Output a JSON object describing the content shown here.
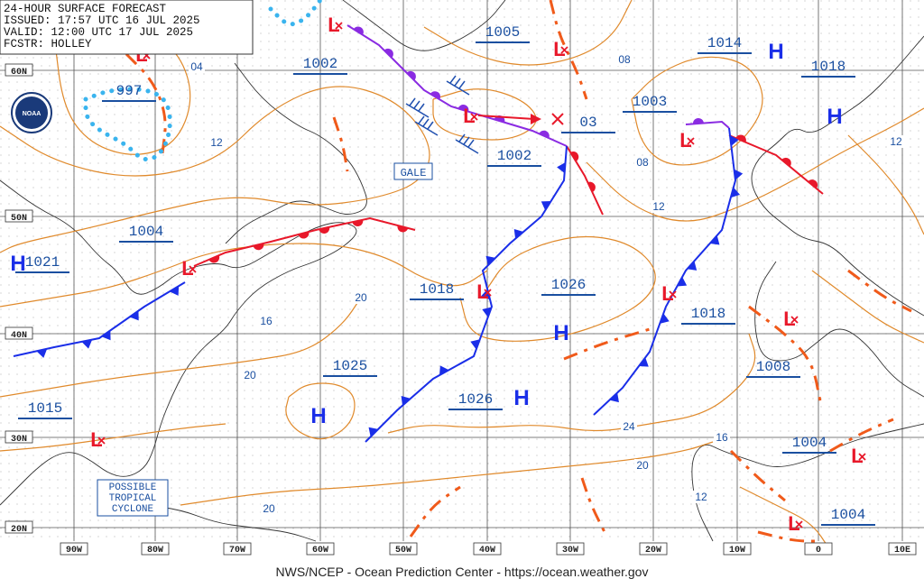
{
  "header": {
    "lines": [
      "24-HOUR SURFACE FORECAST",
      "ISSUED: 17:57 UTC 16 JUL 2025",
      "VALID:  12:00 UTC 17 JUL 2025",
      "FCSTR:  HOLLEY"
    ]
  },
  "logo": "NOAA",
  "pressure_labels": [
    "997",
    "1002",
    "1005",
    "1014",
    "1018",
    "1003",
    "03",
    "1002",
    "1004",
    "1021",
    "1018",
    "1026",
    "1018",
    "1025",
    "1026",
    "1015",
    "1008",
    "1004",
    "1004"
  ],
  "isobar_labels": [
    "04",
    "12",
    "08",
    "08",
    "12",
    "12",
    "20",
    "16",
    "20",
    "24",
    "16",
    "20",
    "12",
    "20"
  ],
  "highs": [
    "H",
    "H",
    "H",
    "H",
    "H",
    "H"
  ],
  "lows": [
    "L",
    "L",
    "L",
    "L",
    "L",
    "L",
    "L",
    "L",
    "L",
    "L",
    "L",
    "L"
  ],
  "gale": "GALE",
  "tropical": [
    "POSSIBLE",
    "TROPICAL",
    "CYCLONE"
  ],
  "lat_labels": [
    "60N",
    "50N",
    "40N",
    "30N",
    "20N"
  ],
  "lon_labels": [
    "90W",
    "80W",
    "70W",
    "60W",
    "50W",
    "40W",
    "30W",
    "20W",
    "10W",
    "0",
    "10E"
  ],
  "footer": "NWS/NCEP - Ocean Prediction Center - https://ocean.weather.gov"
}
